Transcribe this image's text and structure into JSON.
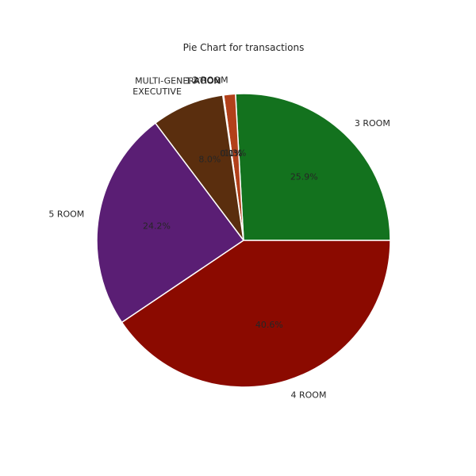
{
  "chart_data": {
    "type": "pie",
    "title": "Pie Chart for transactions",
    "slices": [
      {
        "label": "3 ROOM",
        "value": 25.9,
        "pct_label": "25.9%",
        "color": "#13721e"
      },
      {
        "label": "2 ROOM",
        "value": 1.3,
        "pct_label": "1.3%",
        "color": "#b2401a"
      },
      {
        "label": "1 ROOM",
        "value": 0.1,
        "pct_label": "0.1%",
        "color": "#1b5e6a"
      },
      {
        "label": "MULTI-GENERATION",
        "value": 0.0,
        "pct_label": "0.0%",
        "color": "#6a2a6a"
      },
      {
        "label": "EXECUTIVE",
        "value": 8.0,
        "pct_label": "8.0%",
        "color": "#5a2e0e"
      },
      {
        "label": "5 ROOM",
        "value": 24.2,
        "pct_label": "24.2%",
        "color": "#5a1e74"
      },
      {
        "label": "4 ROOM",
        "value": 40.6,
        "pct_label": "40.6%",
        "color": "#8b0a00"
      }
    ],
    "start_angle_deg": 0,
    "direction": "counterclockwise",
    "grid": false,
    "legend": "none"
  }
}
